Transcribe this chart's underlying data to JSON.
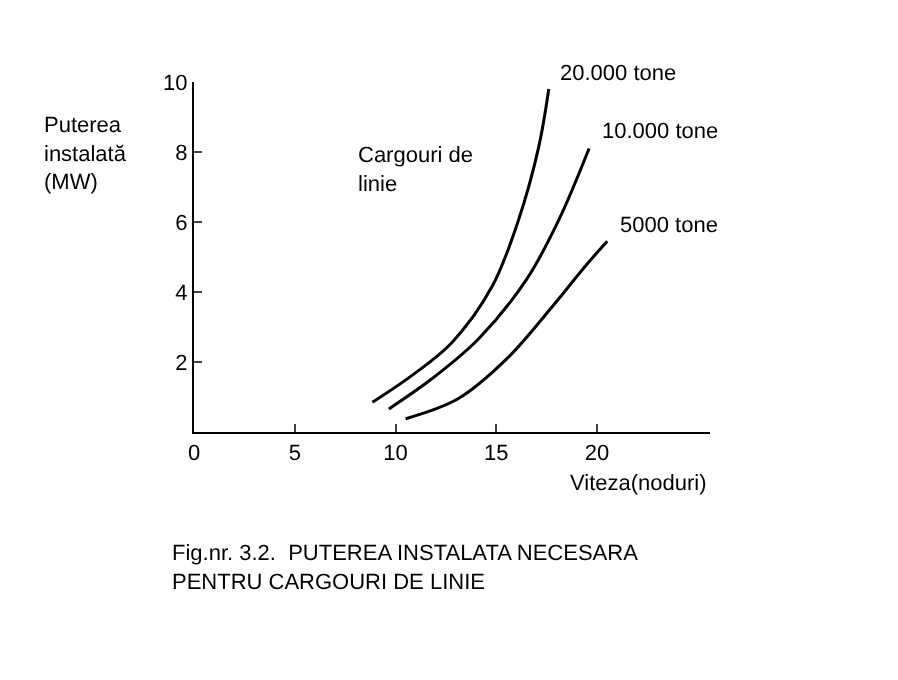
{
  "chart_data": {
    "type": "line",
    "title": "Fig.nr. 3.2.  PUTEREA INSTALATA NECESARA\nPENTRU CARGOURI DE LINIE",
    "xlabel": "Viteza(noduri)",
    "ylabel": "Puterea\ninstalată\n(MW)",
    "annotations": [
      "Cargouri de\nlinie"
    ],
    "xlim": [
      0,
      25.6
    ],
    "ylim": [
      0,
      10
    ],
    "xticks": [
      0,
      5,
      10,
      15,
      20
    ],
    "yticks": [
      2,
      4,
      6,
      8,
      10
    ],
    "legend": false,
    "marker": "none",
    "line_style": "solid",
    "series": [
      {
        "name": "20.000 tone",
        "color": "#000000",
        "x": [
          8.85,
          10.8,
          12.8,
          14.8,
          16.1,
          17.1,
          17.6
        ],
        "values": [
          0.85,
          1.61,
          2.56,
          4.17,
          6.06,
          8.14,
          9.8
        ]
      },
      {
        "name": "10.000 tone",
        "color": "#000000",
        "x": [
          9.67,
          11.8,
          14.1,
          16.5,
          18.1,
          19.6
        ],
        "values": [
          0.66,
          1.52,
          2.65,
          4.36,
          6.06,
          8.1
        ]
      },
      {
        "name": "5000 tone",
        "color": "#000000",
        "x": [
          10.5,
          13.1,
          15.5,
          17.8,
          19.4,
          20.5
        ],
        "values": [
          0.38,
          0.95,
          2.08,
          3.6,
          4.73,
          5.45
        ]
      }
    ]
  }
}
